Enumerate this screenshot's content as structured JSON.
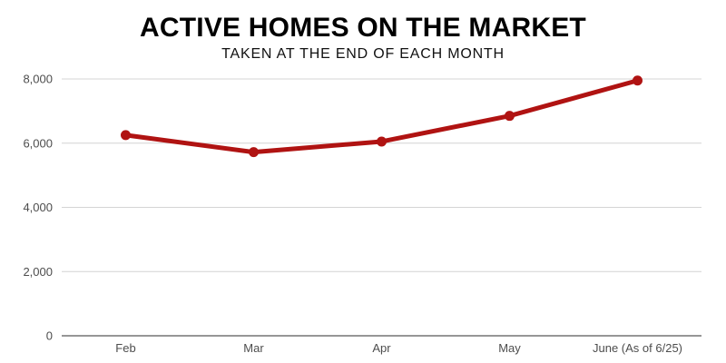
{
  "page": {
    "background": "#ffffff"
  },
  "header": {
    "title": "ACTIVE HOMES ON THE MARKET",
    "subtitle": "TAKEN AT THE END OF EACH MONTH"
  },
  "chart_data": {
    "type": "line",
    "title": "ACTIVE HOMES ON THE MARKET",
    "subtitle": "TAKEN AT THE END OF EACH MONTH",
    "categories": [
      "Feb",
      "Mar",
      "Apr",
      "May",
      "June (As of 6/25)"
    ],
    "values": [
      6250,
      5720,
      6050,
      6850,
      7950
    ],
    "xlabel": "",
    "ylabel": "",
    "ylim": [
      0,
      8000
    ],
    "yticks": [
      0,
      2000,
      4000,
      6000,
      8000
    ],
    "ytick_labels": [
      "0",
      "2,000",
      "4,000",
      "6,000",
      "8,000"
    ],
    "grid": true,
    "legend": false,
    "colors": {
      "line": "#b01312",
      "marker": "#b01312",
      "gridline": "#d4d4d4",
      "axis_line": "#969696",
      "tick_label": "#4d4d4d",
      "title": "#000000"
    }
  }
}
